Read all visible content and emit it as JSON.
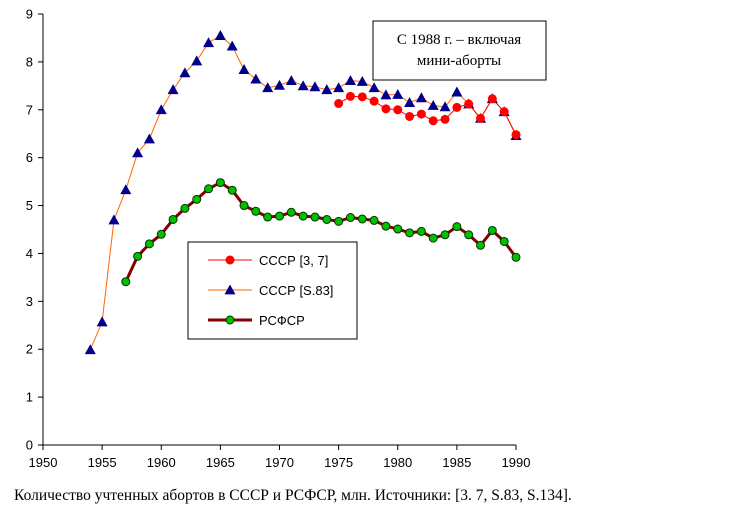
{
  "caption": "Количество учтенных абортов в СССР и РСФСР, млн. Источники: [3. 7, S.83, S.134].",
  "annotation": [
    "С 1988 г. – включая",
    "мини-аборты"
  ],
  "chart_data": {
    "type": "line",
    "title": "",
    "xlabel": "",
    "ylabel": "",
    "xlim": [
      1950,
      1990
    ],
    "ylim": [
      0,
      9
    ],
    "xticks": [
      1950,
      1955,
      1960,
      1965,
      1970,
      1975,
      1980,
      1985,
      1990
    ],
    "yticks": [
      0,
      1,
      2,
      3,
      4,
      5,
      6,
      7,
      8,
      9
    ],
    "grid": "none",
    "legend_position": "center-left",
    "series": [
      {
        "name": "СССР [3, 7]",
        "color": "#ff0000",
        "marker": "circle",
        "line_width": 1,
        "x": [
          1975,
          1976,
          1977,
          1978,
          1979,
          1980,
          1981,
          1982,
          1983,
          1984,
          1985,
          1986,
          1987,
          1988,
          1989,
          1990
        ],
        "values": [
          7.13,
          7.28,
          7.27,
          7.18,
          7.02,
          7.0,
          6.86,
          6.91,
          6.77,
          6.8,
          7.05,
          7.12,
          6.82,
          7.23,
          6.96,
          6.48
        ]
      },
      {
        "name": "СССР [S.83]",
        "color": "#ff6600",
        "marker_color": "#00008b",
        "marker": "triangle",
        "line_width": 1,
        "x": [
          1954,
          1955,
          1956,
          1957,
          1958,
          1959,
          1960,
          1961,
          1962,
          1963,
          1964,
          1965,
          1966,
          1967,
          1968,
          1969,
          1970,
          1971,
          1972,
          1973,
          1974,
          1975,
          1976,
          1977,
          1978,
          1979,
          1980,
          1981,
          1982,
          1983,
          1984,
          1985,
          1986,
          1987,
          1988,
          1989,
          1990
        ],
        "values": [
          1.99,
          2.57,
          4.7,
          5.33,
          6.1,
          6.39,
          7.0,
          7.42,
          7.77,
          8.02,
          8.4,
          8.55,
          8.33,
          7.84,
          7.64,
          7.46,
          7.51,
          7.61,
          7.5,
          7.48,
          7.42,
          7.46,
          7.61,
          7.59,
          7.46,
          7.31,
          7.32,
          7.15,
          7.25,
          7.09,
          7.06,
          7.37,
          7.12,
          6.82,
          7.23,
          6.96,
          6.46
        ]
      },
      {
        "name": "РСФСР",
        "color": "#800000",
        "marker_color": "#00c000",
        "marker": "circle",
        "line_width": 3,
        "x": [
          1957,
          1958,
          1959,
          1960,
          1961,
          1962,
          1963,
          1964,
          1965,
          1966,
          1967,
          1968,
          1969,
          1970,
          1971,
          1972,
          1973,
          1974,
          1975,
          1976,
          1977,
          1978,
          1979,
          1980,
          1981,
          1982,
          1983,
          1984,
          1985,
          1986,
          1987,
          1988,
          1989,
          1990
        ],
        "values": [
          3.41,
          3.94,
          4.2,
          4.4,
          4.71,
          4.94,
          5.13,
          5.35,
          5.48,
          5.32,
          5.0,
          4.88,
          4.76,
          4.78,
          4.86,
          4.78,
          4.76,
          4.71,
          4.67,
          4.75,
          4.72,
          4.69,
          4.57,
          4.51,
          4.43,
          4.46,
          4.32,
          4.39,
          4.56,
          4.39,
          4.17,
          4.48,
          4.25,
          3.92
        ]
      }
    ]
  }
}
